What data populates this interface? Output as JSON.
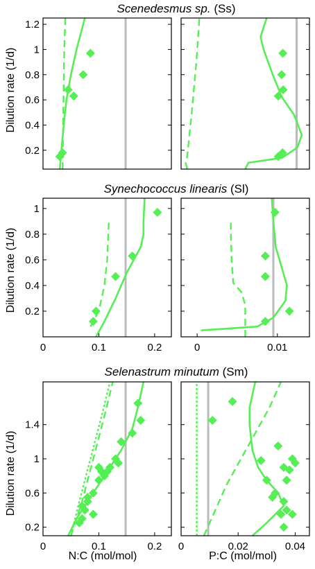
{
  "ylabel": "Dilution rate (1/d)",
  "xlabels": {
    "left": "N:C (mol/mol)",
    "right": "P:C (mol/mol)"
  },
  "colors": {
    "series": "#55ee55",
    "reference": "#bbbbbb"
  },
  "chart_data": [
    {
      "type": "scatter",
      "title_italic": "Scenedesmus sp.",
      "title_suffix": " (Ss)",
      "panels": [
        {
          "xlim": [
            0,
            0.23
          ],
          "ylim": [
            0.05,
            1.25
          ],
          "xticks": [],
          "yticks": [
            0.2,
            0.4,
            0.6,
            0.8,
            1,
            1.2
          ],
          "yticklabels": [
            "0.2",
            "0.4",
            "0.6",
            "0.8",
            "1",
            "1.2"
          ],
          "reference_x": 0.148,
          "points": [
            [
              0.03,
              0.15
            ],
            [
              0.035,
              0.18
            ],
            [
              0.045,
              0.68
            ],
            [
              0.055,
              0.63
            ],
            [
              0.072,
              0.8
            ],
            [
              0.085,
              0.97
            ]
          ],
          "solid": [
            [
              0.03,
              0.05
            ],
            [
              0.033,
              0.2
            ],
            [
              0.037,
              0.4
            ],
            [
              0.042,
              0.6
            ],
            [
              0.05,
              0.8
            ],
            [
              0.06,
              1.0
            ],
            [
              0.075,
              1.25
            ]
          ],
          "dashed": [
            [
              0.035,
              0.05
            ],
            [
              0.036,
              0.4
            ],
            [
              0.037,
              0.7
            ],
            [
              0.038,
              1.0
            ],
            [
              0.04,
              1.25
            ]
          ],
          "dotted": []
        },
        {
          "xlim": [
            0,
            0.042
          ],
          "ylim": [
            0.05,
            1.25
          ],
          "xticks": [],
          "yticks": [
            0.2,
            0.4,
            0.6,
            0.8,
            1,
            1.2
          ],
          "yticklabels": [],
          "reference_x": 0.0378,
          "points": [
            [
              0.0318,
              0.15
            ],
            [
              0.0332,
              0.18
            ],
            [
              0.0318,
              0.63
            ],
            [
              0.0334,
              0.68
            ],
            [
              0.0329,
              0.8
            ],
            [
              0.0333,
              0.97
            ]
          ],
          "solid": [
            [
              0.021,
              0.05
            ],
            [
              0.022,
              0.1
            ],
            [
              0.033,
              0.14
            ],
            [
              0.038,
              0.22
            ],
            [
              0.0395,
              0.32
            ],
            [
              0.037,
              0.48
            ],
            [
              0.033,
              0.62
            ],
            [
              0.03,
              0.8
            ],
            [
              0.027,
              1.0
            ],
            [
              0.026,
              1.1
            ],
            [
              0.028,
              1.25
            ]
          ],
          "dashed": [
            [
              0.002,
              0.05
            ],
            [
              0.0015,
              0.1
            ],
            [
              0.002,
              0.15
            ],
            [
              0.0035,
              0.5
            ],
            [
              0.005,
              0.9
            ],
            [
              0.006,
              1.25
            ]
          ],
          "dotted": []
        }
      ]
    },
    {
      "type": "scatter",
      "title_italic": "Synechococcus linearis",
      "title_suffix": " (Sl)",
      "panels": [
        {
          "xlim": [
            0,
            0.23
          ],
          "ylim": [
            0,
            1.08
          ],
          "xticks": [
            0,
            0.1,
            0.2
          ],
          "yticks": [
            0.2,
            0.4,
            0.6,
            0.8,
            1
          ],
          "xticklabels": [
            "0",
            "0.1",
            "0.2"
          ],
          "yticklabels": [
            "0.2",
            "0.4",
            "0.6",
            "0.8",
            "1"
          ],
          "reference_x": 0.148,
          "points": [
            [
              0.09,
              0.12
            ],
            [
              0.095,
              0.2
            ],
            [
              0.13,
              0.47
            ],
            [
              0.16,
              0.63
            ],
            [
              0.205,
              0.97
            ]
          ],
          "solid": [
            [
              0.095,
              0
            ],
            [
              0.11,
              0.12
            ],
            [
              0.13,
              0.3
            ],
            [
              0.15,
              0.5
            ],
            [
              0.175,
              0.7
            ],
            [
              0.18,
              0.8
            ],
            [
              0.18,
              0.9
            ],
            [
              0.182,
              1.08
            ]
          ],
          "dashed": [
            [
              0.085,
              0.08
            ],
            [
              0.1,
              0.2
            ],
            [
              0.11,
              0.4
            ],
            [
              0.115,
              0.6
            ],
            [
              0.117,
              0.8
            ],
            [
              0.118,
              0.9
            ]
          ],
          "dotted": []
        },
        {
          "xlim": [
            -0.002,
            0.014
          ],
          "ylim": [
            0,
            1.08
          ],
          "xticks": [
            0,
            0.01
          ],
          "yticks": [
            0.2,
            0.4,
            0.6,
            0.8,
            1
          ],
          "xticklabels": [
            "0",
            "0.01"
          ],
          "yticklabels": [],
          "reference_x": 0.0095,
          "points": [
            [
              0.0085,
              0.12
            ],
            [
              0.0085,
              0.47
            ],
            [
              0.0085,
              0.63
            ],
            [
              0.0097,
              0.97
            ],
            [
              0.0115,
              0.2
            ]
          ],
          "solid": [
            [
              0.0005,
              0.05
            ],
            [
              0.0075,
              0.08
            ],
            [
              0.0095,
              0.15
            ],
            [
              0.011,
              0.28
            ],
            [
              0.0112,
              0.4
            ],
            [
              0.0105,
              0.55
            ],
            [
              0.0098,
              0.7
            ],
            [
              0.0095,
              0.9
            ],
            [
              0.0093,
              1.08
            ]
          ],
          "dashed": [
            [
              0.006,
              0
            ],
            [
              0.006,
              0.25
            ],
            [
              0.0055,
              0.35
            ],
            [
              0.0045,
              0.42
            ],
            [
              0.0043,
              0.6
            ],
            [
              0.0042,
              0.8
            ],
            [
              0.0042,
              0.9
            ]
          ],
          "dotted": []
        }
      ]
    },
    {
      "type": "scatter",
      "title_italic": "Selenastrum minutum",
      "title_suffix": " (Sm)",
      "panels": [
        {
          "xlim": [
            0,
            0.23
          ],
          "ylim": [
            0.1,
            1.9
          ],
          "xticks": [
            0,
            0.1,
            0.2
          ],
          "yticks": [
            0.2,
            0.6,
            1,
            1.4
          ],
          "xticklabels": [
            "0",
            "0.1",
            "0.2"
          ],
          "yticklabels": [
            "0.2",
            "0.6",
            "1",
            "1.4"
          ],
          "reference_x": 0.148,
          "points": [
            [
              0.065,
              0.25
            ],
            [
              0.07,
              0.3
            ],
            [
              0.075,
              0.4
            ],
            [
              0.07,
              0.45
            ],
            [
              0.08,
              0.5
            ],
            [
              0.08,
              0.55
            ],
            [
              0.09,
              0.35
            ],
            [
              0.09,
              0.6
            ],
            [
              0.1,
              0.75
            ],
            [
              0.105,
              0.85
            ],
            [
              0.11,
              0.8
            ],
            [
              0.115,
              0.85
            ],
            [
              0.12,
              0.9
            ],
            [
              0.1,
              0.9
            ],
            [
              0.13,
              1.0
            ],
            [
              0.135,
              0.95
            ],
            [
              0.14,
              1.2
            ],
            [
              0.16,
              1.3
            ],
            [
              0.175,
              1.45
            ],
            [
              0.17,
              1.65
            ]
          ],
          "solid": [
            [
              0.045,
              0.1
            ],
            [
              0.06,
              0.3
            ],
            [
              0.08,
              0.5
            ],
            [
              0.1,
              0.7
            ],
            [
              0.12,
              0.9
            ],
            [
              0.14,
              1.1
            ],
            [
              0.16,
              1.35
            ],
            [
              0.17,
              1.6
            ],
            [
              0.18,
              1.9
            ]
          ],
          "dashed": [
            [
              0.05,
              0.1
            ],
            [
              0.07,
              0.5
            ],
            [
              0.09,
              1.0
            ],
            [
              0.11,
              1.5
            ],
            [
              0.125,
              1.9
            ]
          ],
          "dotted": [
            [
              0.05,
              0.1
            ],
            [
              0.065,
              0.5
            ],
            [
              0.085,
              1.0
            ],
            [
              0.105,
              1.5
            ],
            [
              0.12,
              1.9
            ]
          ]
        },
        {
          "xlim": [
            0,
            0.045
          ],
          "ylim": [
            0.1,
            1.9
          ],
          "xticks": [
            0,
            0.02,
            0.04
          ],
          "yticks": [
            0.2,
            0.6,
            1,
            1.4
          ],
          "xticklabels": [
            "0",
            "0.02",
            "0.04"
          ],
          "yticklabels": [],
          "reference_x": 0.0095,
          "points": [
            [
              0.011,
              1.45
            ],
            [
              0.018,
              1.67
            ],
            [
              0.028,
              0.98
            ],
            [
              0.03,
              0.75
            ],
            [
              0.032,
              0.55
            ],
            [
              0.033,
              0.6
            ],
            [
              0.034,
              1.15
            ],
            [
              0.035,
              0.35
            ],
            [
              0.036,
              0.9
            ],
            [
              0.036,
              0.2
            ],
            [
              0.036,
              0.5
            ],
            [
              0.037,
              0.4
            ],
            [
              0.037,
              0.75
            ],
            [
              0.038,
              0.87
            ],
            [
              0.039,
              1.0
            ],
            [
              0.039,
              0.35
            ],
            [
              0.04,
              0.95
            ]
          ],
          "solid": [
            [
              0.025,
              0.1
            ],
            [
              0.03,
              0.25
            ],
            [
              0.036,
              0.45
            ],
            [
              0.034,
              0.6
            ],
            [
              0.03,
              0.75
            ],
            [
              0.027,
              0.9
            ],
            [
              0.025,
              1.1
            ],
            [
              0.024,
              1.4
            ],
            [
              0.024,
              1.6
            ],
            [
              0.026,
              1.9
            ]
          ],
          "dashed": [
            [
              0.008,
              0.1
            ],
            [
              0.012,
              0.4
            ],
            [
              0.016,
              0.7
            ],
            [
              0.021,
              1.0
            ],
            [
              0.026,
              1.3
            ],
            [
              0.031,
              1.6
            ],
            [
              0.035,
              1.9
            ]
          ],
          "dotted": [
            [
              0.0055,
              0.1
            ],
            [
              0.0055,
              0.5
            ],
            [
              0.0055,
              1.0
            ],
            [
              0.0055,
              1.5
            ],
            [
              0.0055,
              1.9
            ]
          ]
        }
      ]
    }
  ]
}
